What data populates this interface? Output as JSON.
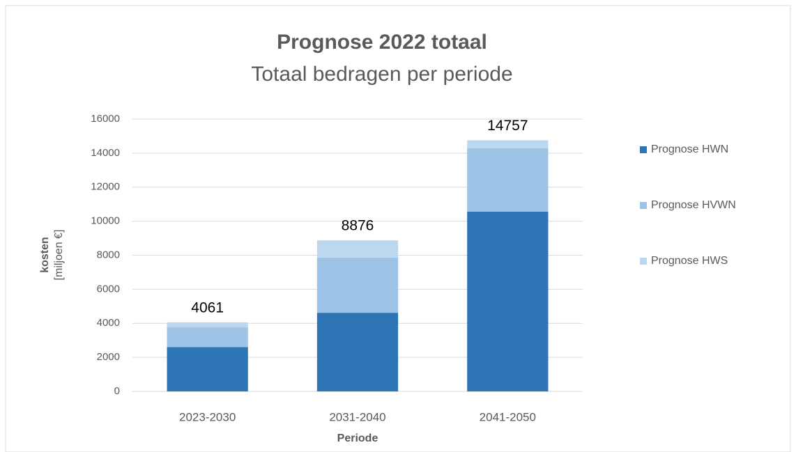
{
  "chart_data": {
    "type": "stacked_bar",
    "title": "Prognose 2022 totaal",
    "subtitle": "Totaal bedragen per periode",
    "x_label": "Periode",
    "y_label": [
      "kosten",
      "[miljoen €]"
    ],
    "categories": [
      "2023-2030",
      "2031-2040",
      "2041-2050"
    ],
    "series": [
      {
        "name": "Prognose HWN",
        "color": "#2e75b6",
        "values": [
          2600,
          4620,
          10560
        ]
      },
      {
        "name": "Prognose HVWN",
        "color": "#9dc3e6",
        "values": [
          1160,
          3240,
          3720
        ]
      },
      {
        "name": "Prognose HWS",
        "color": "#bdd7ee",
        "values": [
          301,
          1016,
          477
        ]
      }
    ],
    "totals": [
      4061,
      8876,
      14757
    ],
    "ylim": [
      0,
      16000
    ],
    "yticks": [
      0,
      2000,
      4000,
      6000,
      8000,
      10000,
      12000,
      14000,
      16000
    ],
    "grid": true,
    "legend": "right"
  }
}
